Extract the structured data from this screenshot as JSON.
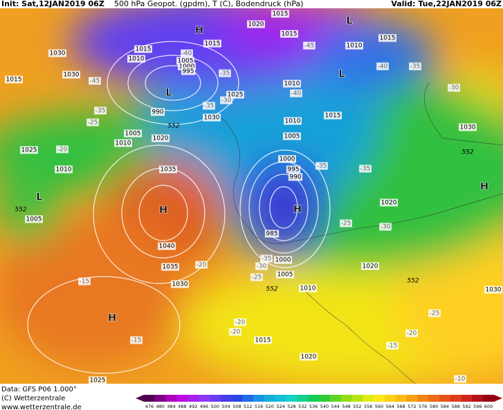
{
  "header": {
    "init": "Init: Sat,12JAN2019 06Z",
    "title": "500 hPa Geopot. (gpdm), T (C), Bodendruck (hPa)",
    "valid": "Valid: Tue,22JAN2019 06Z"
  },
  "map": {
    "pressure_labels": [
      "1015",
      "1020",
      "1015",
      "1015",
      "1010",
      "1015",
      "1030",
      "1015",
      "1010",
      "1005",
      "1000",
      "995",
      "1030",
      "1015",
      "1025",
      "1010",
      "990",
      "1030",
      "1015",
      "1010",
      "1030",
      "1005",
      "1020",
      "1010",
      "1005",
      "1025",
      "1000",
      "1010",
      "995",
      "990",
      "1035",
      "1020",
      "1005",
      "1040",
      "985",
      "1000",
      "1035",
      "1005",
      "1020",
      "1030",
      "1010",
      "1015",
      "1020",
      "1025",
      "1030"
    ],
    "centers": [
      "H",
      "L",
      "L",
      "L",
      "H",
      "H",
      "L",
      "H",
      "H"
    ],
    "temperature_labels": [
      "-40",
      "-45",
      "-40",
      "-35",
      "-35",
      "-45",
      "-30",
      "-40",
      "-35",
      "-25",
      "-30",
      "-35",
      "-20",
      "-35",
      "-35",
      "-25",
      "-30",
      "-35",
      "-30",
      "-20",
      "-25",
      "-15",
      "-20",
      "-20",
      "-15",
      "-25",
      "-20",
      "-15",
      "-10"
    ],
    "contour_labels": [
      "552",
      "552",
      "552",
      "552",
      "552"
    ]
  },
  "footer": {
    "data": "Data: GFS P06 1.000°",
    "copyright": "(C) Wetterzentrale",
    "url": "www.wetterzentrale.de"
  },
  "colorbar": {
    "labels": [
      "476",
      "480",
      "484",
      "488",
      "492",
      "496",
      "500",
      "504",
      "508",
      "512",
      "516",
      "520",
      "524",
      "528",
      "532",
      "536",
      "540",
      "544",
      "548",
      "552",
      "556",
      "560",
      "564",
      "568",
      "572",
      "576",
      "580",
      "584",
      "588",
      "592",
      "596",
      "600"
    ]
  }
}
